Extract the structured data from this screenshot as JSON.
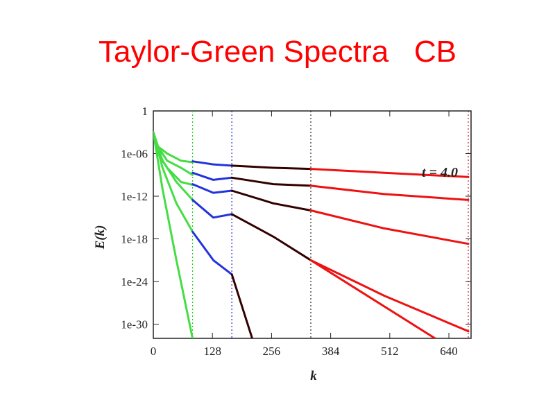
{
  "slide": {
    "title": "Taylor-Green Spectra   CB"
  },
  "chart_data": {
    "type": "line",
    "xlabel": "k",
    "ylabel": "E(k)",
    "y_scale": "log",
    "xlim": [
      0,
      688
    ],
    "ylim": [
      1e-32,
      1
    ],
    "x_ticks": [
      0,
      128,
      256,
      384,
      512,
      640
    ],
    "x_tick_labels": [
      "0",
      "128",
      "256",
      "384",
      "512",
      "640"
    ],
    "y_ticks": [
      1,
      1e-06,
      1e-12,
      1e-18,
      1e-24,
      1e-30
    ],
    "y_tick_labels": [
      "1",
      "1e-06",
      "1e-12",
      "1e-18",
      "1e-24",
      "1e-30"
    ],
    "annotation": "t = 4.0",
    "resolution_cutoffs": [
      {
        "k": 85,
        "color": "#22cc22"
      },
      {
        "k": 170,
        "color": "#1a1acc"
      },
      {
        "k": 341,
        "color": "#222222"
      },
      {
        "k": 682,
        "color": "#cc2222"
      }
    ],
    "series": [
      {
        "color": "#44dd44",
        "curves": [
          {
            "x": [
              0,
              10,
              30,
              60,
              85
            ],
            "y": [
              0.001,
              1e-05,
              1e-06,
              1e-07,
              6e-08
            ]
          },
          {
            "x": [
              0,
              10,
              30,
              60,
              85
            ],
            "y": [
              0.001,
              1e-05,
              1e-07,
              1e-08,
              1e-09
            ]
          },
          {
            "x": [
              0,
              10,
              30,
              60,
              85
            ],
            "y": [
              0.001,
              1e-06,
              1e-08,
              1e-10,
              4e-11
            ]
          },
          {
            "x": [
              0,
              20,
              50,
              85
            ],
            "y": [
              0.001,
              1e-07,
              1e-10,
              3e-13
            ]
          },
          {
            "x": [
              0,
              20,
              50,
              85
            ],
            "y": [
              0.001,
              1e-08,
              1e-13,
              1e-17
            ]
          },
          {
            "x": [
              0,
              20,
              50,
              85
            ],
            "y": [
              0.001,
              1e-11,
              1e-21,
              1e-32
            ]
          }
        ]
      },
      {
        "color": "#2233dd",
        "curves": [
          {
            "x": [
              85,
              130,
              170
            ],
            "y": [
              8e-08,
              3e-08,
              2e-08
            ]
          },
          {
            "x": [
              85,
              130,
              170
            ],
            "y": [
              2e-09,
              2e-10,
              4e-10
            ]
          },
          {
            "x": [
              85,
              130,
              170
            ],
            "y": [
              5e-11,
              3e-12,
              6e-12
            ]
          },
          {
            "x": [
              85,
              130,
              170
            ],
            "y": [
              3e-13,
              1e-15,
              3e-15
            ]
          },
          {
            "x": [
              85,
              130,
              170
            ],
            "y": [
              1e-17,
              1e-21,
              1e-23
            ]
          }
        ]
      },
      {
        "color": "#330000",
        "curves": [
          {
            "x": [
              170,
              260,
              341
            ],
            "y": [
              2e-08,
              1e-08,
              7e-09
            ]
          },
          {
            "x": [
              170,
              260,
              341
            ],
            "y": [
              4e-10,
              5e-11,
              3e-11
            ]
          },
          {
            "x": [
              170,
              260,
              341
            ],
            "y": [
              6e-12,
              1e-13,
              1e-14
            ]
          },
          {
            "x": [
              170,
              260,
              341
            ],
            "y": [
              3e-15,
              2e-18,
              1e-21
            ]
          },
          {
            "x": [
              170,
              214
            ],
            "y": [
              1e-23,
              1e-32
            ]
          }
        ]
      },
      {
        "color": "#ee1111",
        "curves": [
          {
            "x": [
              341,
              500,
              682
            ],
            "y": [
              7e-09,
              2e-09,
              5e-10
            ]
          },
          {
            "x": [
              341,
              500,
              682
            ],
            "y": [
              3e-11,
              2e-12,
              3e-13
            ]
          },
          {
            "x": [
              341,
              500,
              682
            ],
            "y": [
              1e-14,
              3e-17,
              2e-19
            ]
          },
          {
            "x": [
              341,
              500,
              682
            ],
            "y": [
              1e-21,
              1e-26,
              1e-31
            ]
          },
          {
            "x": [
              341,
              610
            ],
            "y": [
              1e-21,
              1e-32
            ]
          }
        ]
      }
    ]
  }
}
